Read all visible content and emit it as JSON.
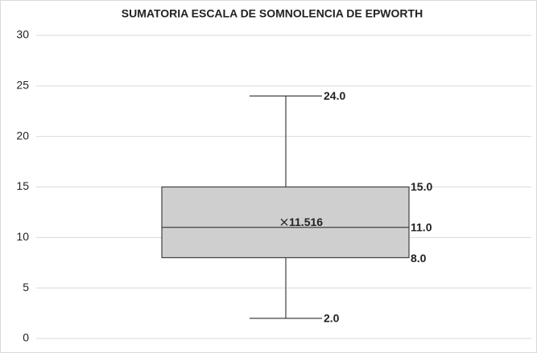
{
  "chart_data": {
    "type": "box",
    "title": "SUMATORIA ESCALA DE SOMNOLENCIA DE EPWORTH",
    "stats": {
      "min": 2,
      "q1": 8,
      "median": 11,
      "q3": 15,
      "max": 24,
      "mean": 11.516
    },
    "value_labels": {
      "min": "2.0",
      "q1": "8.0",
      "median": "11.0",
      "q3": "15.0",
      "max": "24.0"
    },
    "color": "#d0cfd0",
    "line_color": "#404040",
    "ylim": [
      0,
      30
    ],
    "yticks": [
      0,
      5,
      10,
      15,
      20,
      25,
      30
    ],
    "grid": true
  }
}
